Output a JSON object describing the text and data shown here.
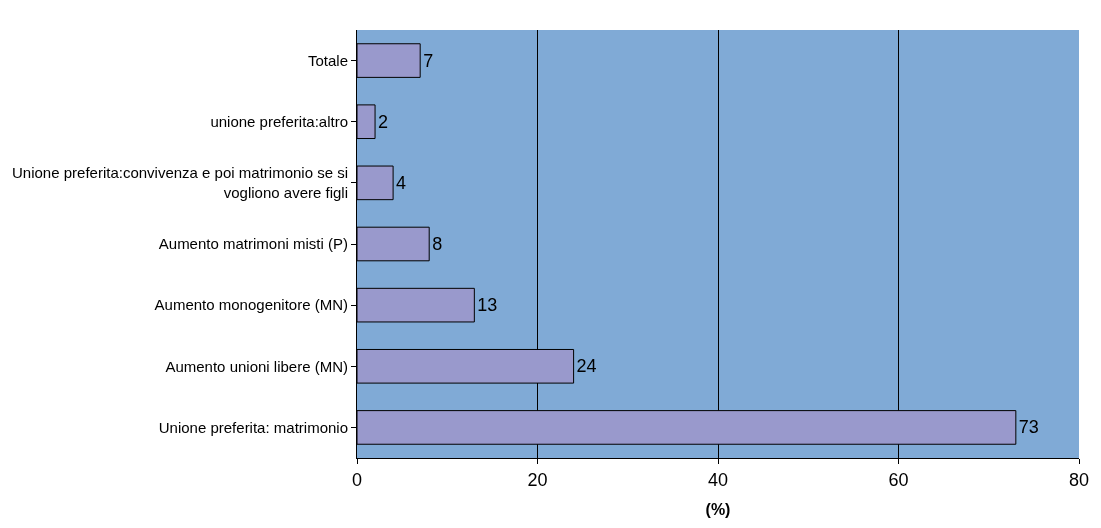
{
  "chart_data": {
    "type": "bar",
    "orientation": "horizontal",
    "categories": [
      "Totale",
      "unione preferita:altro",
      "Unione preferita:convivenza e poi matrimonio se si vogliono avere figli",
      "Aumento matrimoni misti (P)",
      "Aumento monogenitore (MN)",
      "Aumento unioni libere (MN)",
      "Unione preferita: matrimonio"
    ],
    "values": [
      7,
      2,
      4,
      8,
      13,
      24,
      73
    ],
    "color": "#9999cc",
    "xlabel": "(%)",
    "xlim": [
      0,
      80
    ],
    "xticks": [
      0,
      20,
      40,
      60,
      80
    ],
    "grid": "x",
    "data_labels": true,
    "legend": false
  }
}
